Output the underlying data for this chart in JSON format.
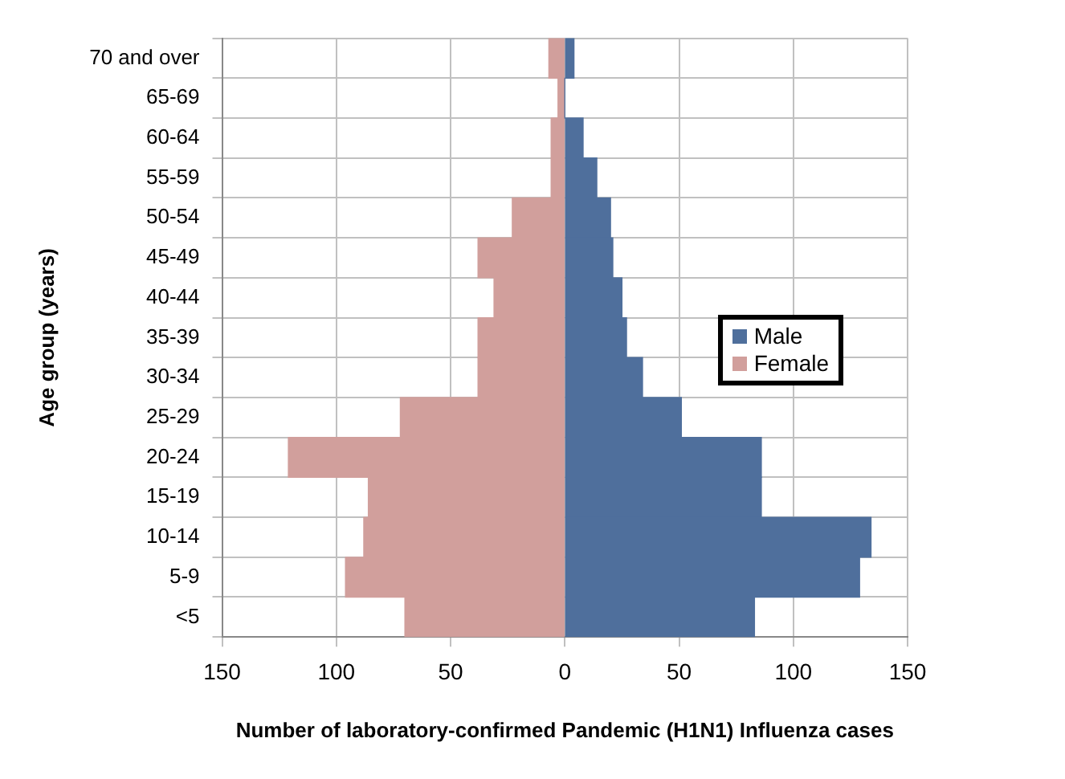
{
  "chart_data": {
    "type": "bar",
    "orientation": "horizontal",
    "stacked": true,
    "xlabel": "Number of laboratory-confirmed Pandemic (H1N1) Influenza cases",
    "ylabel": "Age group (years)",
    "categories": [
      "70 and over",
      "65-69",
      "60-64",
      "55-59",
      "50-54",
      "45-49",
      "40-44",
      "35-39",
      "30-34",
      "25-29",
      "20-24",
      "15-19",
      "10-14",
      "5-9",
      "<5"
    ],
    "series": [
      {
        "name": "Male",
        "color": "#4f6f9c",
        "values": [
          4,
          0,
          8,
          14,
          20,
          21,
          25,
          27,
          34,
          51,
          86,
          86,
          134,
          129,
          83
        ]
      },
      {
        "name": "Female",
        "color": "#d19f9c",
        "values": [
          -7,
          -3,
          -6,
          -6,
          -23,
          -38,
          -31,
          -38,
          -38,
          -72,
          -121,
          -86,
          -88,
          -96,
          -70
        ]
      }
    ],
    "xlim": [
      -150,
      150
    ],
    "xticks": [
      {
        "value": -150,
        "label": "150"
      },
      {
        "value": -100,
        "label": "100"
      },
      {
        "value": -50,
        "label": "50"
      },
      0,
      50,
      100,
      150
    ],
    "grid": true,
    "legend": "right"
  }
}
